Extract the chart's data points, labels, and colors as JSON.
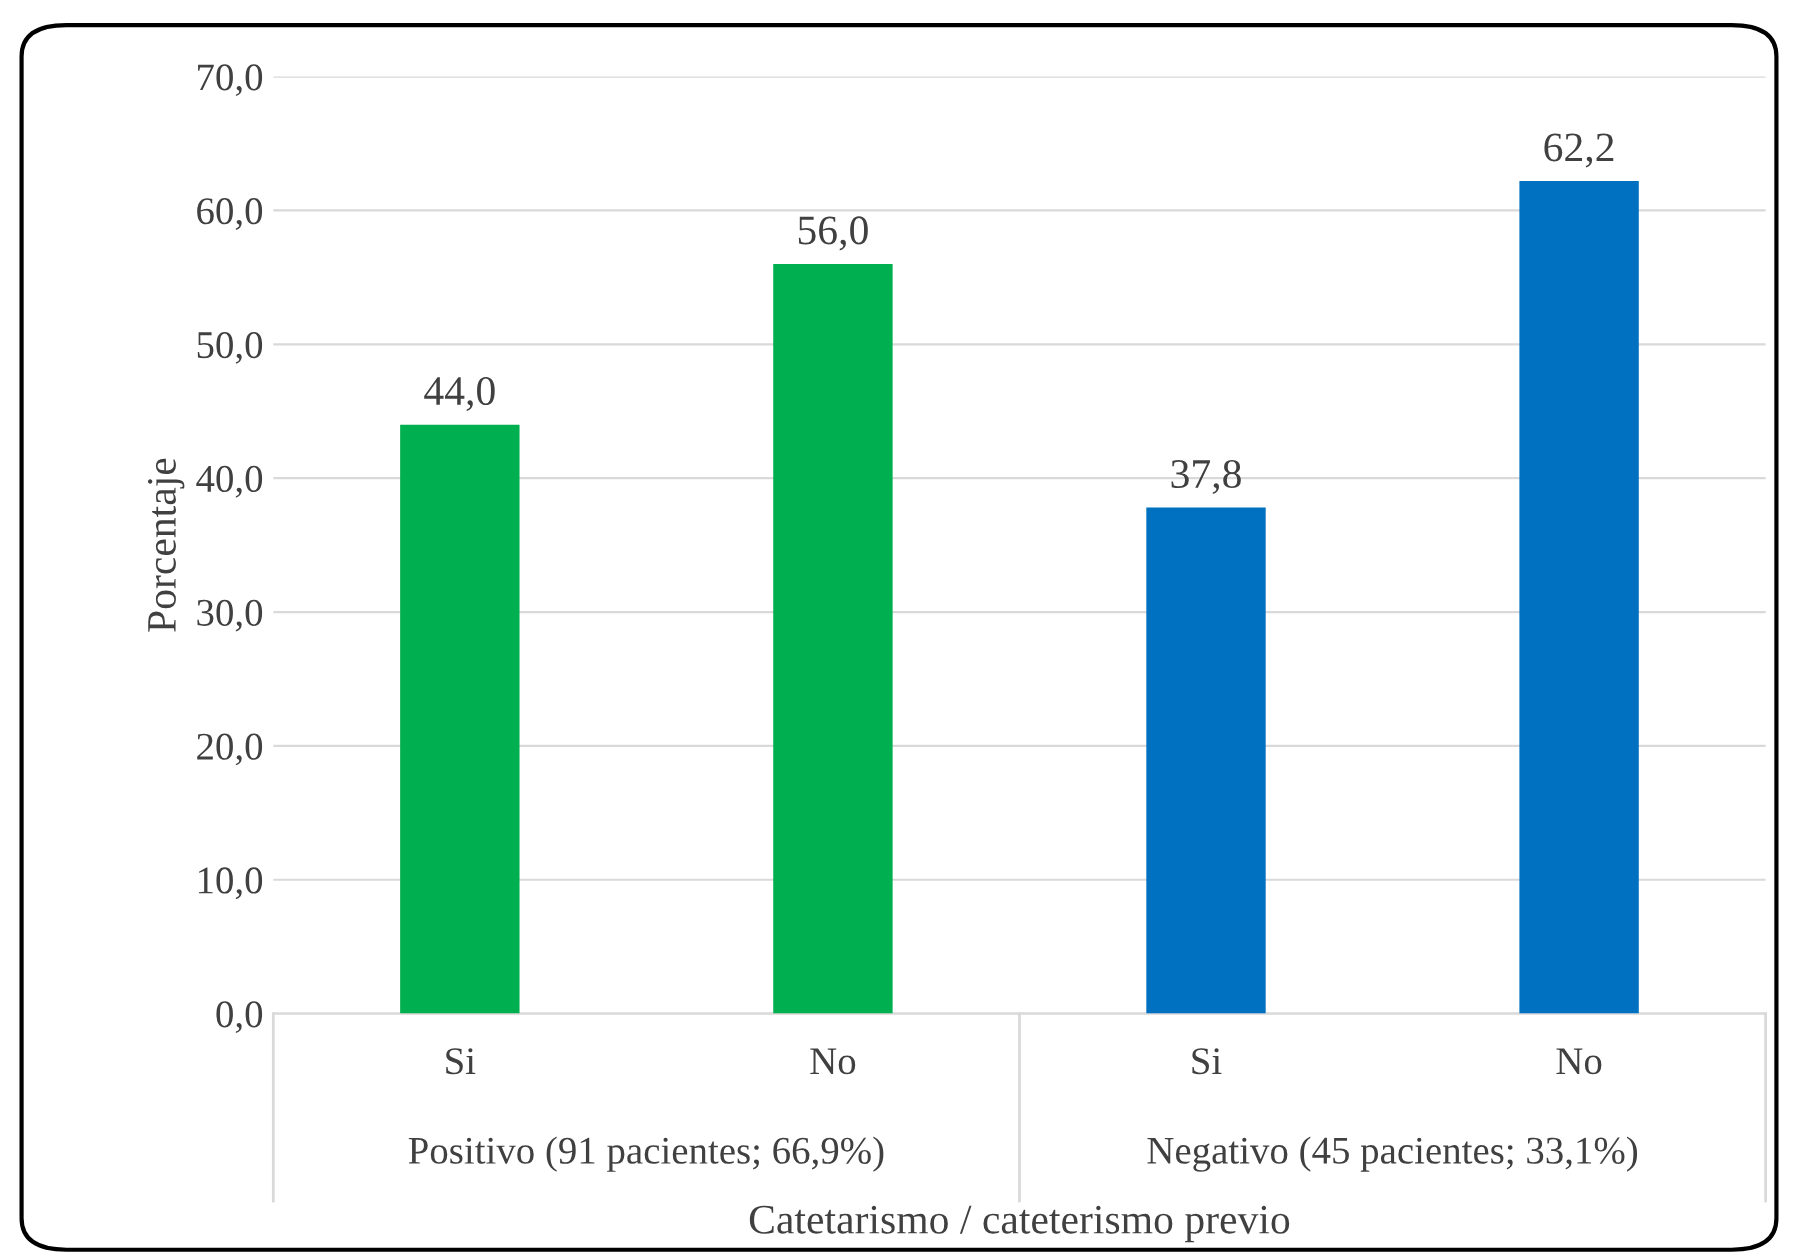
{
  "chart_data": {
    "type": "bar",
    "ylabel": "Porcentaje",
    "xlabel": "Catetarismo / cateterismo previo",
    "categories": [
      "Si",
      "No",
      "Si",
      "No"
    ],
    "series": [
      {
        "color": "#00b050",
        "values": [
          44.0,
          56.0,
          null,
          null
        ],
        "value_labels": [
          "44,0",
          "56,0",
          null,
          null
        ]
      },
      {
        "color": "#0070c0",
        "values": [
          null,
          null,
          37.8,
          62.2
        ],
        "value_labels": [
          null,
          null,
          "37,8",
          "62,2"
        ]
      }
    ],
    "ylim": [
      0,
      70
    ],
    "yticks": [
      {
        "value": 0,
        "label": "0,0"
      },
      {
        "value": 10,
        "label": "10,0"
      },
      {
        "value": 20,
        "label": "20,0"
      },
      {
        "value": 30,
        "label": "30,0"
      },
      {
        "value": 40,
        "label": "40,0"
      },
      {
        "value": 50,
        "label": "50,0"
      },
      {
        "value": 60,
        "label": "60,0"
      },
      {
        "value": 70,
        "label": "70,0"
      }
    ],
    "annotations": [
      "Positivo (91 pacientes; 66,9%)",
      "Negativo (45 pacientes; 33,1%)"
    ],
    "grid": "y",
    "legend": false
  }
}
